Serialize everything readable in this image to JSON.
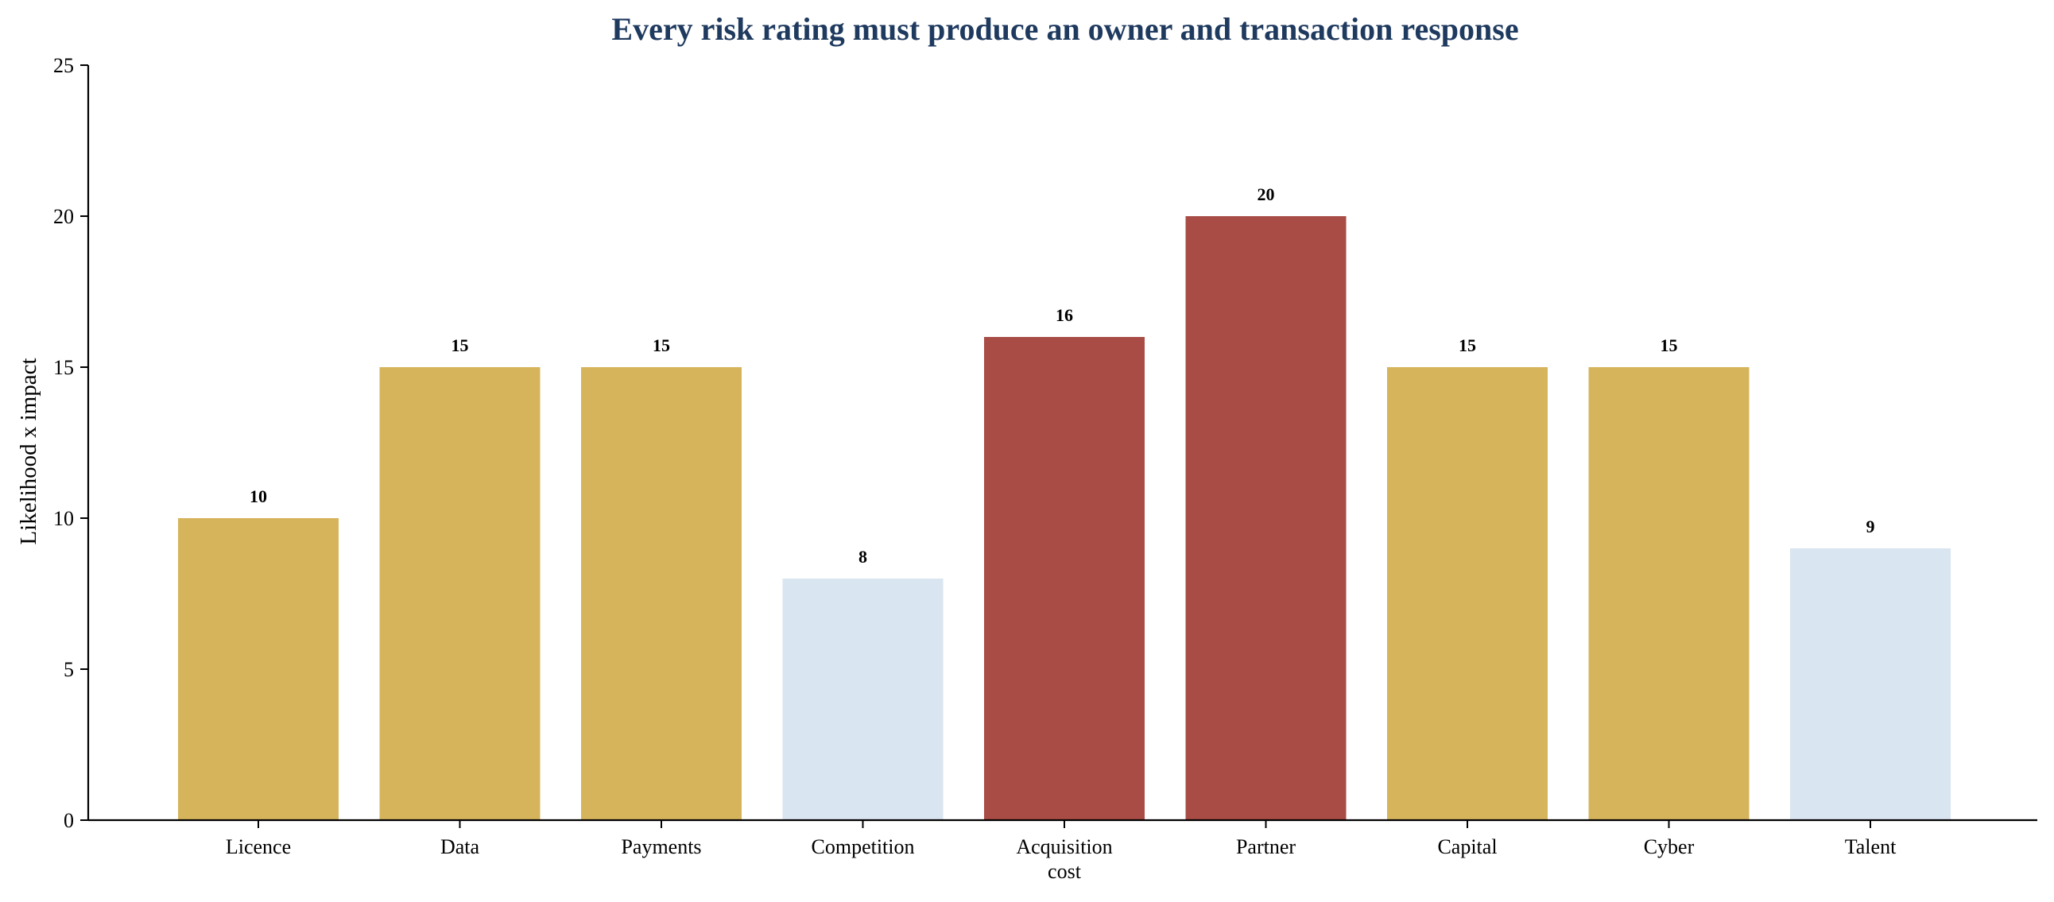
{
  "chart_data": {
    "type": "bar",
    "title": "Every risk rating must produce an owner and transaction response",
    "xlabel": "",
    "ylabel": "Likelihood x impact",
    "categories": [
      "Licence",
      "Data",
      "Payments",
      "Competition",
      "Acquisition cost",
      "Partner",
      "Capital",
      "Cyber",
      "Talent"
    ],
    "values": [
      10,
      15,
      15,
      8,
      16,
      20,
      15,
      15,
      9
    ],
    "bar_colors": [
      "#d6b45c",
      "#d6b45c",
      "#d6b45c",
      "#d9e5f0",
      "#a84c45",
      "#a84c45",
      "#d6b45c",
      "#d6b45c",
      "#d9e5f0"
    ],
    "data_labels": [
      "10",
      "15",
      "15",
      "8",
      "16",
      "20",
      "15",
      "15",
      "9"
    ],
    "ylim": [
      0,
      25
    ],
    "yticks": [
      0,
      5,
      10,
      15,
      20,
      25
    ],
    "grid": false,
    "legend": "none",
    "title_color": "#1f3a5f"
  }
}
